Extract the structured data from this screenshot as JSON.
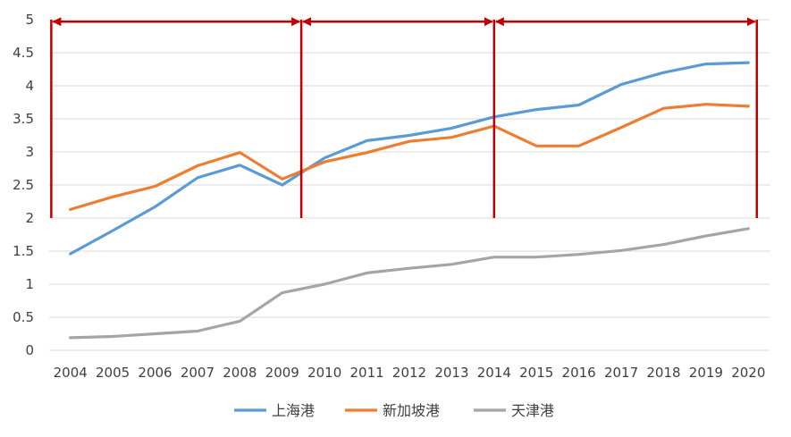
{
  "chart_data": {
    "type": "line",
    "title": "",
    "xlabel": "",
    "ylabel": "",
    "categories": [
      "2004",
      "2005",
      "2006",
      "2007",
      "2008",
      "2009",
      "2010",
      "2011",
      "2012",
      "2013",
      "2014",
      "2015",
      "2016",
      "2017",
      "2018",
      "2019",
      "2020"
    ],
    "ylim": [
      0,
      5
    ],
    "yticks": [
      "0",
      "0.5",
      "1",
      "1.5",
      "2",
      "2.5",
      "3",
      "3.5",
      "4",
      "4.5",
      "5"
    ],
    "grid": true,
    "legend_position": "bottom",
    "series": [
      {
        "name": "上海港",
        "color": "#5B9BD5",
        "values": [
          1.46,
          1.81,
          2.17,
          2.61,
          2.8,
          2.5,
          2.91,
          3.17,
          3.25,
          3.36,
          3.53,
          3.64,
          3.71,
          4.02,
          4.2,
          4.33,
          4.35
        ]
      },
      {
        "name": "新加坡港",
        "color": "#ED7D31",
        "values": [
          2.13,
          2.32,
          2.48,
          2.79,
          2.99,
          2.59,
          2.85,
          2.99,
          3.16,
          3.22,
          3.39,
          3.09,
          3.09,
          3.37,
          3.66,
          3.72,
          3.69
        ]
      },
      {
        "name": "天津港",
        "color": "#A5A5A5",
        "values": [
          0.19,
          0.21,
          0.25,
          0.29,
          0.44,
          0.87,
          1.0,
          1.17,
          1.24,
          1.3,
          1.41,
          1.41,
          1.45,
          1.51,
          1.6,
          1.73,
          1.84
        ]
      }
    ],
    "annotations": {
      "color": "#C00000",
      "vertical_markers_x": [
        2003.55,
        2009.45,
        2014.0,
        2020.2
      ],
      "vertical_marker_bottom_y": 2.0,
      "period_arrows_y": 4.97,
      "periods": [
        [
          2003.55,
          2009.45
        ],
        [
          2009.45,
          2014.0
        ],
        [
          2014.0,
          2020.2
        ]
      ]
    }
  }
}
